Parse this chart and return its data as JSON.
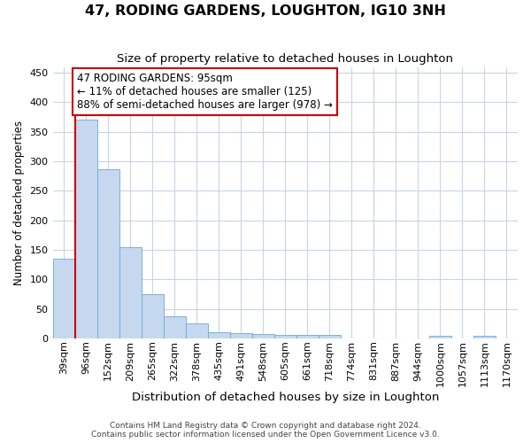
{
  "title": "47, RODING GARDENS, LOUGHTON, IG10 3NH",
  "subtitle": "Size of property relative to detached houses in Loughton",
  "xlabel": "Distribution of detached houses by size in Loughton",
  "ylabel": "Number of detached properties",
  "footnote1": "Contains HM Land Registry data © Crown copyright and database right 2024.",
  "footnote2": "Contains public sector information licensed under the Open Government Licence v3.0.",
  "bar_labels": [
    "39sqm",
    "96sqm",
    "152sqm",
    "209sqm",
    "265sqm",
    "322sqm",
    "378sqm",
    "435sqm",
    "491sqm",
    "548sqm",
    "605sqm",
    "661sqm",
    "718sqm",
    "774sqm",
    "831sqm",
    "887sqm",
    "944sqm",
    "1000sqm",
    "1057sqm",
    "1113sqm",
    "1170sqm"
  ],
  "bar_values": [
    135,
    370,
    287,
    155,
    75,
    37,
    25,
    10,
    8,
    7,
    5,
    5,
    5,
    0,
    0,
    0,
    0,
    4,
    0,
    4,
    0
  ],
  "bar_color": "#c5d8f0",
  "bar_edge_color": "#6aaad4",
  "background_color": "#ffffff",
  "grid_color": "#c8d4e8",
  "annotation_text": "47 RODING GARDENS: 95sqm\n← 11% of detached houses are smaller (125)\n88% of semi-detached houses are larger (978) →",
  "annotation_box_color": "#ffffff",
  "annotation_box_edge": "#cc0000",
  "marker_line_color": "#cc0000",
  "ylim": [
    0,
    460
  ],
  "yticks": [
    0,
    50,
    100,
    150,
    200,
    250,
    300,
    350,
    400,
    450
  ],
  "title_fontsize": 11.5,
  "subtitle_fontsize": 9.5,
  "ylabel_fontsize": 8.5,
  "xlabel_fontsize": 9.5,
  "tick_fontsize": 8,
  "annotation_fontsize": 8.5,
  "footnote_fontsize": 6.5
}
